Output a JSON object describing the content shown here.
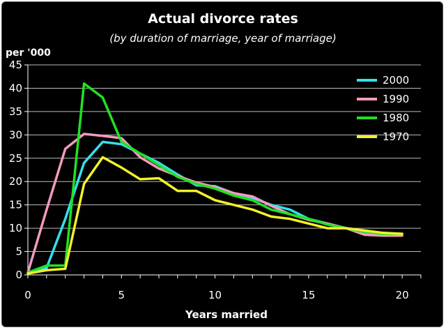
{
  "chart_data": {
    "type": "line",
    "title": "Actual divorce rates",
    "subtitle": "(by duration of marriage, year of marriage)",
    "ylabel": "per '000",
    "xlabel": "Years married",
    "xlim": [
      0,
      21
    ],
    "ylim": [
      0,
      45
    ],
    "xticks": [
      "0",
      "5",
      "10",
      "15",
      "20"
    ],
    "yticks": [
      "0",
      "5",
      "10",
      "15",
      "20",
      "25",
      "30",
      "35",
      "40",
      "45"
    ],
    "grid": true,
    "legend_position": "top-right",
    "series": [
      {
        "name": "2000",
        "color": "#33e0ee",
        "x": [
          0,
          1,
          2,
          3,
          4,
          5,
          6,
          7,
          8,
          9,
          10,
          11,
          12,
          13,
          14,
          15,
          16,
          17,
          18,
          19,
          20
        ],
        "values": [
          0.5,
          1.5,
          12,
          24,
          28.5,
          28,
          26,
          24,
          21.5,
          19.2,
          19,
          17.5,
          16.5,
          15,
          14,
          12,
          11,
          10,
          9,
          8.7,
          8.7
        ]
      },
      {
        "name": "1990",
        "color": "#f39ac0",
        "x": [
          0,
          1,
          2,
          3,
          4,
          5,
          6,
          7,
          8,
          9,
          10,
          11,
          12,
          13,
          14,
          15,
          16,
          17,
          18,
          19,
          20
        ],
        "values": [
          0.5,
          14,
          27,
          30.2,
          29.8,
          29.3,
          25.2,
          22.8,
          21.2,
          19.8,
          18.8,
          17.5,
          16.8,
          14.8,
          13,
          11.8,
          11,
          10,
          8.6,
          8.4,
          8.4
        ]
      },
      {
        "name": "1980",
        "color": "#22e022",
        "x": [
          0,
          1,
          2,
          3,
          4,
          5,
          6,
          7,
          8,
          9,
          10,
          11,
          12,
          13,
          14,
          15,
          16,
          17,
          18,
          19,
          20
        ],
        "values": [
          0.5,
          2,
          2,
          41,
          38,
          28.5,
          26,
          23.5,
          21,
          19.5,
          18.5,
          17,
          16,
          14,
          13,
          12,
          10.8,
          10,
          9.2,
          8.8,
          8.8
        ]
      },
      {
        "name": "1970",
        "color": "#f2f22a",
        "x": [
          0,
          1,
          2,
          3,
          4,
          5,
          6,
          7,
          8,
          9,
          10,
          11,
          12,
          13,
          14,
          15,
          16,
          17,
          18,
          19,
          20
        ],
        "values": [
          0.3,
          1,
          1.3,
          19.5,
          25.2,
          23,
          20.5,
          20.7,
          18,
          18,
          16,
          15,
          14,
          12.5,
          12,
          11,
          10,
          10,
          9.5,
          9,
          8.8
        ]
      }
    ]
  }
}
